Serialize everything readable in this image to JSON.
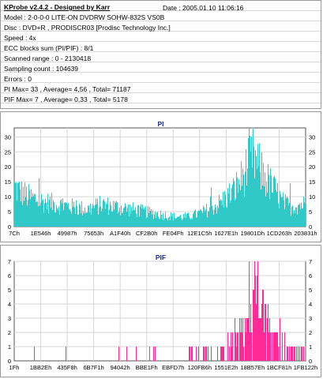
{
  "header": {
    "title": "KProbe v2.4.2 - Designed by Karr",
    "date": "Date : 2005.01.10 11:06:16"
  },
  "info_lines": [
    "Model : 2-0-0-0 LITE-ON DVDRW SOHW-832S  VS0B",
    "Disc : DVD+R , PRODISCR03 [Prodisc Technology Inc.]",
    "Speed : 4x",
    "ECC blocks sum (PI/PIF) : 8/1",
    "Scanned range : 0 - 2130418",
    "Sampling count : 104639",
    "Errors : 0",
    "PI Max= 33 , Average= 4,56 , Total= 71187",
    "PIF Max= 7 , Average= 0,33 , Total= 5178"
  ],
  "colors": {
    "pi": "#31c8c8",
    "pif": "#ff2a96",
    "title": "#1b2a9b",
    "grid": "#d6d6d6"
  },
  "chart_data": [
    {
      "type": "area",
      "title": "PI",
      "ylim": [
        0,
        33
      ],
      "yticks": [
        0,
        5,
        10,
        15,
        20,
        25,
        30
      ],
      "xticks": [
        "7Ch",
        "1E546h",
        "49987h",
        "75653h",
        "A1F40h",
        "CF2B0h",
        "FE04Fh",
        "12E1C5h",
        "1627E1h",
        "19801Dh",
        "1CD263h",
        "203831h"
      ],
      "x_position_fraction": [
        0.0,
        0.0909,
        0.1818,
        0.2727,
        0.3636,
        0.4545,
        0.5454,
        0.6363,
        0.7272,
        0.8181,
        0.909,
        1.0
      ],
      "envelope_x_fraction": [
        0.0,
        0.02,
        0.05,
        0.1,
        0.15,
        0.2,
        0.25,
        0.3,
        0.35,
        0.4,
        0.45,
        0.5,
        0.55,
        0.6,
        0.65,
        0.7,
        0.75,
        0.78,
        0.8,
        0.82,
        0.85,
        0.88,
        0.9,
        0.92,
        0.95,
        0.98,
        1.0
      ],
      "envelope_values": [
        16,
        14,
        12,
        10,
        9,
        8,
        7,
        9,
        8,
        7,
        6,
        5,
        4,
        4,
        6,
        9,
        14,
        19,
        24,
        28,
        22,
        17,
        14,
        10,
        8,
        9,
        9
      ],
      "max_peak": 33,
      "grid": true
    },
    {
      "type": "bar",
      "title": "PIF",
      "ylim": [
        0,
        7
      ],
      "yticks": [
        0,
        1,
        2,
        3,
        4,
        5,
        6,
        7
      ],
      "xticks": [
        "1Fh",
        "1BB2Eh",
        "435F8h",
        "6B7F1h",
        "94042h",
        "BBE1Fh",
        "EBFD7h",
        "120FB6h",
        "1551E2h",
        "18B57Eh",
        "1BCF81h",
        "1FB122h"
      ],
      "x_position_fraction": [
        0.0,
        0.0909,
        0.1818,
        0.2727,
        0.3636,
        0.4545,
        0.5454,
        0.6363,
        0.7272,
        0.8181,
        0.909,
        1.0
      ],
      "envelope_x_fraction": [
        0.0,
        0.05,
        0.1,
        0.2,
        0.3,
        0.4,
        0.5,
        0.55,
        0.6,
        0.65,
        0.7,
        0.73,
        0.76,
        0.79,
        0.81,
        0.83,
        0.85,
        0.87,
        0.9,
        0.93,
        0.96,
        1.0
      ],
      "envelope_values": [
        1,
        0,
        1,
        0,
        0,
        1,
        0,
        0,
        1,
        1,
        1,
        2,
        3,
        4,
        6,
        7,
        6,
        4,
        3,
        2,
        1,
        1
      ],
      "max_peak": 7,
      "grid": true
    }
  ]
}
